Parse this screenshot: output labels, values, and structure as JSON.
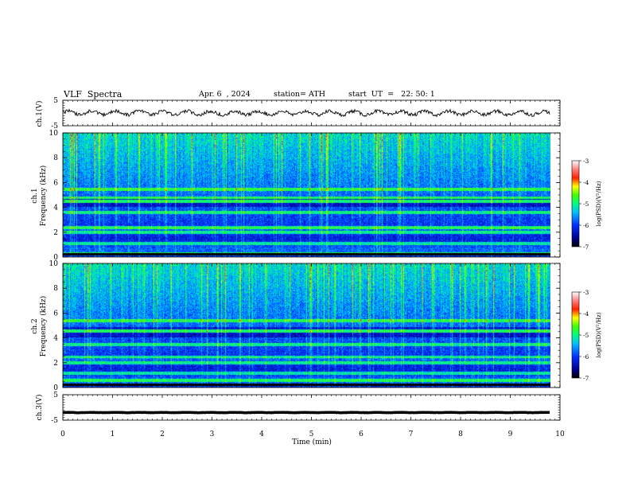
{
  "header": {
    "title": "VLF  Spectra",
    "date": "Apr. 6  , 2024",
    "station": "station= ATH",
    "start_ut": "start  UT  =   22: 50: 1"
  },
  "colorbar": {
    "label": "log(PSD)(V²/Hz)",
    "ticks": [
      "-3",
      "-4",
      "-5",
      "-6",
      "-7"
    ],
    "range": [
      -7,
      -3
    ]
  },
  "chart_data": [
    {
      "type": "line",
      "title": "",
      "ylabel": "ch.1(V)",
      "ylim": [
        -5,
        5
      ],
      "y_ticks": [
        "5",
        "-5"
      ],
      "xlim": [
        0,
        10
      ],
      "x_extent_min": 9.8,
      "baseline_v": 0,
      "amplitude_v": 1.5
    },
    {
      "type": "heatmap",
      "ylabel_line1": "ch.1",
      "ylabel_line2": "Frequency (kHz)",
      "ylim": [
        0,
        10
      ],
      "y_ticks": [
        "10",
        "8",
        "6",
        "4",
        "2",
        "0"
      ],
      "xlim": [
        0,
        10
      ],
      "x_extent_min": 9.8,
      "zlim": [
        -7,
        -3
      ],
      "bands_khz": [
        0.3,
        1.1,
        2.0,
        2.4,
        3.6,
        4.5,
        4.8,
        5.5
      ]
    },
    {
      "type": "heatmap",
      "ylabel_line1": "ch.2",
      "ylabel_line2": "Frequency (kHz)",
      "ylim": [
        0,
        10
      ],
      "y_ticks": [
        "10",
        "8",
        "6",
        "4",
        "2",
        "0"
      ],
      "xlim": [
        0,
        10
      ],
      "x_extent_min": 9.8,
      "zlim": [
        -7,
        -3
      ],
      "bands_khz": [
        0.6,
        1.2,
        2.0,
        2.5,
        3.5,
        4.6,
        5.4
      ]
    },
    {
      "type": "line",
      "ylabel": "ch.3(V)",
      "ylim": [
        -5,
        5
      ],
      "y_ticks": [
        "5",
        "-5"
      ],
      "xlim": [
        0,
        10
      ],
      "x_extent_min": 9.8,
      "baseline_v": -2,
      "amplitude_v": 0.1
    }
  ],
  "x_axis": {
    "label": "Time  (min)",
    "ticks": [
      "0",
      "1",
      "2",
      "3",
      "4",
      "5",
      "6",
      "7",
      "8",
      "9",
      "10"
    ]
  }
}
